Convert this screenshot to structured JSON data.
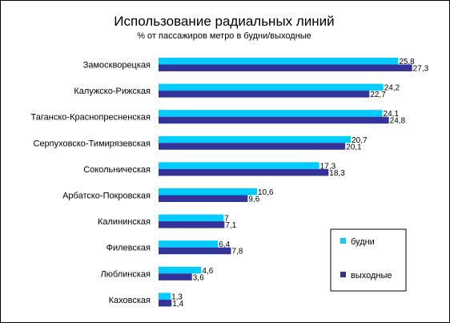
{
  "chart_data": {
    "type": "bar",
    "orientation": "horizontal",
    "title": "Использование радиальных линий",
    "subtitle": "% от пассажиров метро в будни/выходные",
    "categories": [
      "Замоскворецкая",
      "Калужско-Рижская",
      "Таганско-Краснопресненская",
      "Серпуховско-Тимирязевская",
      "Сокольническая",
      "Арбатско-Покровская",
      "Калининская",
      "Филевская",
      "Люблинская",
      "Каховская"
    ],
    "series": [
      {
        "name": "будни",
        "color": "#00ccff",
        "values": [
          25.8,
          24.2,
          24.1,
          20.7,
          17.3,
          10.6,
          7,
          6.4,
          4.6,
          1.3
        ],
        "labels": [
          "25,8",
          "24,2",
          "24,1",
          "20,7",
          "17,3",
          "10,6",
          "7",
          "6,4",
          "4,6",
          "1,3"
        ]
      },
      {
        "name": "выходные",
        "color": "#333399",
        "values": [
          27.3,
          22.7,
          24.8,
          20.1,
          18.3,
          9.6,
          7.1,
          7.8,
          3.6,
          1.4
        ],
        "labels": [
          "27,3",
          "22,7",
          "24,8",
          "20,1",
          "18,3",
          "9,6",
          "7,1",
          "7,8",
          "3,6",
          "1,4"
        ]
      }
    ],
    "xlim": [
      0,
      28
    ],
    "grid": false,
    "legend_position": "bottom-right",
    "legend_boxed": true
  }
}
